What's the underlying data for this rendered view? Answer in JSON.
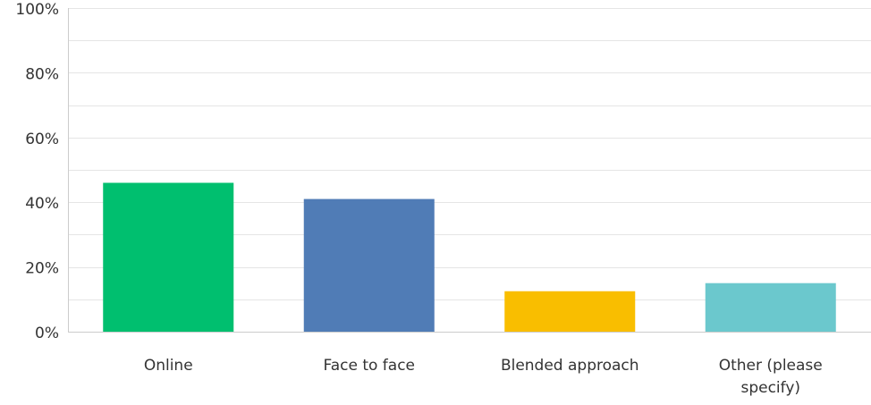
{
  "chart_data": {
    "type": "bar",
    "categories": [
      "Online",
      "Face to face",
      "Blended approach",
      "Other (please specify)"
    ],
    "category_lines": [
      [
        "Online"
      ],
      [
        "Face to face"
      ],
      [
        "Blended approach"
      ],
      [
        "Other (please",
        "specify)"
      ]
    ],
    "values": [
      46,
      41,
      12.5,
      15
    ],
    "value_unit": "%",
    "ylim": [
      0,
      100
    ],
    "ytick_values": [
      0,
      20,
      40,
      60,
      80,
      100
    ],
    "ytick_labels": [
      "0%",
      "20%",
      "40%",
      "60%",
      "80%",
      "100%"
    ],
    "gridlines_every": 10,
    "grid": true,
    "colors": [
      "#00bf6f",
      "#507cb6",
      "#f9be00",
      "#6bc8cd"
    ],
    "grid_color": "#e5e5e5",
    "axis_color": "#cccccc",
    "title": "",
    "xlabel": "",
    "ylabel": ""
  }
}
